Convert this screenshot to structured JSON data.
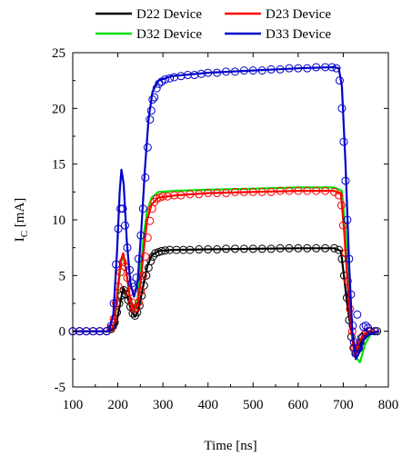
{
  "chart_data": {
    "type": "line",
    "title": "",
    "xlabel": "Time [ns]",
    "ylabel_main": "I",
    "ylabel_sub": "C",
    "ylabel_unit": " [mA]",
    "xlim": [
      100,
      800
    ],
    "ylim": [
      -5,
      25
    ],
    "x_ticks": [
      100,
      200,
      300,
      400,
      500,
      600,
      700,
      800
    ],
    "y_ticks": [
      -5,
      0,
      5,
      10,
      15,
      20,
      25
    ],
    "x_tick_labels": [
      "100",
      "200",
      "300",
      "400",
      "500",
      "600",
      "700",
      "800"
    ],
    "y_tick_labels": [
      "-5",
      "0",
      "5",
      "10",
      "15",
      "20",
      "25"
    ],
    "grid": false,
    "legend_placement": "top",
    "markers": "open circles (measured), solid lines (simulated)",
    "series": [
      {
        "name": "D22 Device",
        "color": "#000000",
        "line": [
          [
            100,
            0
          ],
          [
            180,
            0
          ],
          [
            195,
            0.3
          ],
          [
            205,
            2.5
          ],
          [
            212,
            3.9
          ],
          [
            220,
            3.3
          ],
          [
            230,
            1.8
          ],
          [
            238,
            1.3
          ],
          [
            245,
            1.8
          ],
          [
            255,
            3.8
          ],
          [
            265,
            5.8
          ],
          [
            275,
            6.8
          ],
          [
            290,
            7.2
          ],
          [
            320,
            7.3
          ],
          [
            400,
            7.35
          ],
          [
            500,
            7.4
          ],
          [
            600,
            7.45
          ],
          [
            680,
            7.45
          ],
          [
            695,
            7.2
          ],
          [
            700,
            5.5
          ],
          [
            710,
            2
          ],
          [
            720,
            -0.5
          ],
          [
            728,
            -2.0
          ],
          [
            735,
            -1.4
          ],
          [
            745,
            -0.6
          ],
          [
            760,
            -0.1
          ],
          [
            780,
            0
          ]
        ],
        "points": [
          [
            100,
            0
          ],
          [
            115,
            0
          ],
          [
            130,
            0
          ],
          [
            145,
            0
          ],
          [
            160,
            0
          ],
          [
            175,
            0
          ],
          [
            185,
            0.2
          ],
          [
            193,
            0.8
          ],
          [
            198,
            1.7
          ],
          [
            203,
            2.5
          ],
          [
            208,
            3.2
          ],
          [
            213,
            3.7
          ],
          [
            218,
            3.3
          ],
          [
            223,
            2.8
          ],
          [
            228,
            2.2
          ],
          [
            233,
            1.6
          ],
          [
            238,
            1.4
          ],
          [
            243,
            1.7
          ],
          [
            248,
            2.3
          ],
          [
            253,
            3.2
          ],
          [
            258,
            4.1
          ],
          [
            263,
            5
          ],
          [
            268,
            5.7
          ],
          [
            273,
            6.3
          ],
          [
            278,
            6.7
          ],
          [
            283,
            7
          ],
          [
            290,
            7.1
          ],
          [
            297,
            7.2
          ],
          [
            305,
            7.25
          ],
          [
            315,
            7.3
          ],
          [
            330,
            7.3
          ],
          [
            345,
            7.3
          ],
          [
            360,
            7.3
          ],
          [
            380,
            7.35
          ],
          [
            400,
            7.35
          ],
          [
            420,
            7.35
          ],
          [
            440,
            7.4
          ],
          [
            460,
            7.4
          ],
          [
            480,
            7.4
          ],
          [
            500,
            7.4
          ],
          [
            520,
            7.4
          ],
          [
            540,
            7.4
          ],
          [
            560,
            7.45
          ],
          [
            580,
            7.45
          ],
          [
            600,
            7.45
          ],
          [
            620,
            7.45
          ],
          [
            640,
            7.45
          ],
          [
            660,
            7.45
          ],
          [
            680,
            7.45
          ],
          [
            690,
            7.3
          ],
          [
            697,
            6.5
          ],
          [
            702,
            5
          ],
          [
            708,
            3
          ],
          [
            713,
            1
          ],
          [
            718,
            -0.5
          ],
          [
            723,
            -1.5
          ],
          [
            728,
            -1.9
          ],
          [
            733,
            -1.6
          ],
          [
            738,
            -1
          ],
          [
            743,
            -0.5
          ],
          [
            750,
            -0.2
          ],
          [
            760,
            0
          ],
          [
            775,
            0
          ]
        ]
      },
      {
        "name": "D23 Device",
        "color": "#ff0000",
        "line": [
          [
            100,
            0
          ],
          [
            180,
            0
          ],
          [
            192,
            0.5
          ],
          [
            200,
            4
          ],
          [
            207,
            6.4
          ],
          [
            212,
            7.0
          ],
          [
            218,
            5.6
          ],
          [
            226,
            3.2
          ],
          [
            235,
            1.9
          ],
          [
            243,
            2.2
          ],
          [
            250,
            4.2
          ],
          [
            258,
            7.5
          ],
          [
            265,
            10.0
          ],
          [
            275,
            11.4
          ],
          [
            290,
            12.0
          ],
          [
            330,
            12.2
          ],
          [
            400,
            12.4
          ],
          [
            500,
            12.5
          ],
          [
            600,
            12.6
          ],
          [
            680,
            12.6
          ],
          [
            695,
            12.3
          ],
          [
            702,
            9
          ],
          [
            710,
            4
          ],
          [
            718,
            0
          ],
          [
            725,
            -2.2
          ],
          [
            732,
            -1.3
          ],
          [
            742,
            -0.5
          ],
          [
            755,
            0
          ],
          [
            780,
            0
          ]
        ],
        "points": [
          [
            100,
            0
          ],
          [
            115,
            0
          ],
          [
            130,
            0
          ],
          [
            145,
            0
          ],
          [
            160,
            0
          ],
          [
            175,
            0
          ],
          [
            185,
            0.3
          ],
          [
            191,
            1.1
          ],
          [
            196,
            2.5
          ],
          [
            201,
            4
          ],
          [
            206,
            5.3
          ],
          [
            211,
            6.2
          ],
          [
            216,
            5.8
          ],
          [
            221,
            4.8
          ],
          [
            226,
            3.5
          ],
          [
            231,
            2.6
          ],
          [
            236,
            2
          ],
          [
            241,
            2.1
          ],
          [
            246,
            2.6
          ],
          [
            251,
            3.6
          ],
          [
            256,
            5
          ],
          [
            261,
            6.7
          ],
          [
            266,
            8.4
          ],
          [
            271,
            9.9
          ],
          [
            276,
            11
          ],
          [
            281,
            11.6
          ],
          [
            286,
            11.9
          ],
          [
            293,
            12
          ],
          [
            300,
            12.1
          ],
          [
            310,
            12.1
          ],
          [
            325,
            12.2
          ],
          [
            340,
            12.2
          ],
          [
            360,
            12.3
          ],
          [
            380,
            12.3
          ],
          [
            400,
            12.4
          ],
          [
            420,
            12.4
          ],
          [
            440,
            12.4
          ],
          [
            460,
            12.5
          ],
          [
            480,
            12.5
          ],
          [
            500,
            12.5
          ],
          [
            520,
            12.5
          ],
          [
            540,
            12.5
          ],
          [
            560,
            12.6
          ],
          [
            580,
            12.6
          ],
          [
            600,
            12.6
          ],
          [
            620,
            12.6
          ],
          [
            640,
            12.6
          ],
          [
            660,
            12.6
          ],
          [
            680,
            12.5
          ],
          [
            690,
            12.2
          ],
          [
            696,
            11.3
          ],
          [
            700,
            9.5
          ],
          [
            705,
            7
          ],
          [
            710,
            4.5
          ],
          [
            715,
            2
          ],
          [
            720,
            0
          ],
          [
            725,
            -1.5
          ],
          [
            730,
            -1.6
          ],
          [
            735,
            -1.1
          ],
          [
            740,
            -0.6
          ],
          [
            747,
            -0.3
          ],
          [
            755,
            0
          ],
          [
            770,
            0
          ]
        ]
      },
      {
        "name": "D32 Device",
        "color": "#00e000",
        "line": [
          [
            100,
            0
          ],
          [
            180,
            0
          ],
          [
            192,
            0.4
          ],
          [
            200,
            3.5
          ],
          [
            207,
            6.2
          ],
          [
            212,
            6.8
          ],
          [
            218,
            5.5
          ],
          [
            226,
            3.2
          ],
          [
            235,
            2.0
          ],
          [
            243,
            2.6
          ],
          [
            250,
            5.5
          ],
          [
            258,
            8.8
          ],
          [
            265,
            10.8
          ],
          [
            275,
            12.0
          ],
          [
            290,
            12.5
          ],
          [
            330,
            12.6
          ],
          [
            400,
            12.7
          ],
          [
            500,
            12.8
          ],
          [
            600,
            12.9
          ],
          [
            680,
            12.9
          ],
          [
            697,
            12.6
          ],
          [
            705,
            9
          ],
          [
            713,
            4
          ],
          [
            720,
            0
          ],
          [
            728,
            -2.3
          ],
          [
            737,
            -2.8
          ],
          [
            748,
            -1.2
          ],
          [
            760,
            -0.3
          ],
          [
            780,
            0
          ]
        ],
        "points": []
      },
      {
        "name": "D33 Device",
        "color": "#0000cc",
        "line": [
          [
            100,
            0
          ],
          [
            180,
            0
          ],
          [
            190,
            1.5
          ],
          [
            198,
            7
          ],
          [
            204,
            12.5
          ],
          [
            208,
            14.5
          ],
          [
            213,
            13.2
          ],
          [
            220,
            8
          ],
          [
            228,
            4.2
          ],
          [
            236,
            3.1
          ],
          [
            244,
            4.5
          ],
          [
            252,
            9
          ],
          [
            260,
            14.5
          ],
          [
            268,
            19
          ],
          [
            277,
            21.5
          ],
          [
            290,
            22.5
          ],
          [
            320,
            22.9
          ],
          [
            400,
            23.2
          ],
          [
            500,
            23.4
          ],
          [
            600,
            23.6
          ],
          [
            680,
            23.7
          ],
          [
            690,
            23.6
          ],
          [
            697,
            22
          ],
          [
            705,
            15
          ],
          [
            713,
            6
          ],
          [
            720,
            0
          ],
          [
            728,
            -2.5
          ],
          [
            736,
            -1.8
          ],
          [
            746,
            -0.7
          ],
          [
            760,
            -0.2
          ],
          [
            780,
            0
          ]
        ],
        "points": [
          [
            100,
            0
          ],
          [
            115,
            0
          ],
          [
            130,
            0
          ],
          [
            145,
            0
          ],
          [
            160,
            0
          ],
          [
            175,
            0
          ],
          [
            185,
            0.5
          ],
          [
            191,
            2.5
          ],
          [
            196,
            6
          ],
          [
            201,
            9.2
          ],
          [
            206,
            11
          ],
          [
            211,
            11
          ],
          [
            216,
            9.5
          ],
          [
            221,
            7.5
          ],
          [
            226,
            5.5
          ],
          [
            231,
            4.3
          ],
          [
            236,
            4
          ],
          [
            241,
            4.8
          ],
          [
            246,
            6.5
          ],
          [
            251,
            8.6
          ],
          [
            256,
            11
          ],
          [
            261,
            13.8
          ],
          [
            266,
            16.5
          ],
          [
            271,
            19
          ],
          [
            274,
            19.8
          ],
          [
            277,
            20.8
          ],
          [
            281,
            21
          ],
          [
            286,
            21.8
          ],
          [
            291,
            22.2
          ],
          [
            297,
            22.4
          ],
          [
            305,
            22.6
          ],
          [
            315,
            22.7
          ],
          [
            325,
            22.8
          ],
          [
            340,
            22.9
          ],
          [
            355,
            23
          ],
          [
            370,
            23
          ],
          [
            385,
            23.1
          ],
          [
            400,
            23.2
          ],
          [
            420,
            23.2
          ],
          [
            440,
            23.3
          ],
          [
            460,
            23.3
          ],
          [
            480,
            23.4
          ],
          [
            500,
            23.4
          ],
          [
            520,
            23.4
          ],
          [
            540,
            23.5
          ],
          [
            560,
            23.5
          ],
          [
            580,
            23.6
          ],
          [
            600,
            23.6
          ],
          [
            620,
            23.6
          ],
          [
            640,
            23.7
          ],
          [
            660,
            23.7
          ],
          [
            675,
            23.7
          ],
          [
            685,
            23.6
          ],
          [
            692,
            22.5
          ],
          [
            697,
            20
          ],
          [
            701,
            17
          ],
          [
            705,
            13.5
          ],
          [
            709,
            10
          ],
          [
            713,
            6.5
          ],
          [
            717,
            3.3
          ],
          [
            721,
            0.5
          ],
          [
            724,
            -1
          ],
          [
            727,
            -2
          ],
          [
            731,
            1.5
          ],
          [
            735,
            -1.5
          ],
          [
            740,
            -0.6
          ],
          [
            745,
            0.4
          ],
          [
            750,
            0.5
          ],
          [
            755,
            0.3
          ],
          [
            760,
            0
          ],
          [
            770,
            0
          ]
        ]
      }
    ],
    "legend": [
      {
        "name": "D22 Device",
        "color": "#000000"
      },
      {
        "name": "D23 Device",
        "color": "#ff0000"
      },
      {
        "name": "D32 Device",
        "color": "#00e000"
      },
      {
        "name": "D33 Device",
        "color": "#0000cc"
      }
    ]
  }
}
